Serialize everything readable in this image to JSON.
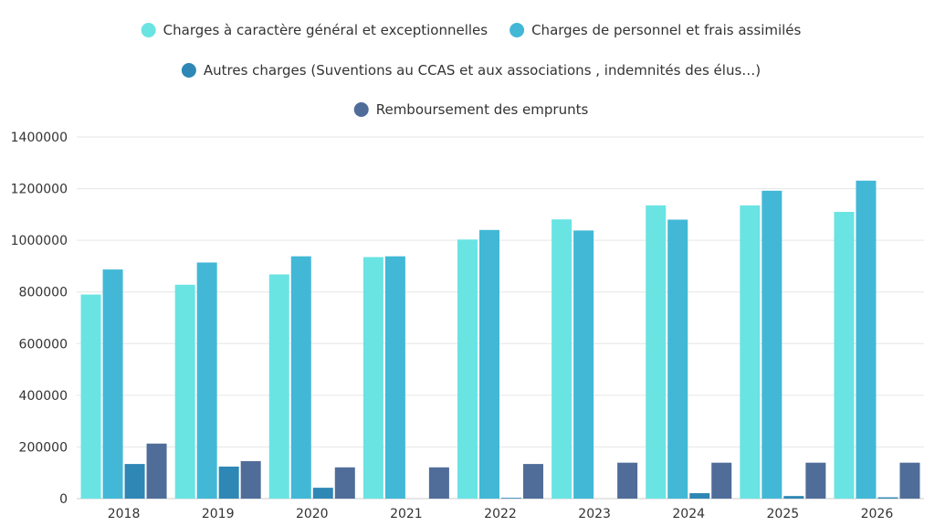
{
  "chart_data": {
    "type": "bar",
    "title": "",
    "xlabel": "",
    "ylabel": "",
    "ylim": [
      0,
      1400000
    ],
    "yticks": [
      0,
      200000,
      400000,
      600000,
      800000,
      1000000,
      1200000,
      1400000
    ],
    "ytick_labels": [
      "0",
      "200000",
      "400000",
      "600000",
      "800000",
      "1000000",
      "1200000",
      "1400000"
    ],
    "grid": true,
    "legend_position": "top",
    "categories": [
      "2018",
      "2019",
      "2020",
      "2021",
      "2022",
      "2023",
      "2024",
      "2025",
      "2026"
    ],
    "series": [
      {
        "name": "Charges à caractère général et exceptionnelles",
        "color": "#6ae3e3",
        "values": [
          790000,
          828000,
          868000,
          935000,
          1003000,
          1081000,
          1135000,
          1135000,
          1110000
        ]
      },
      {
        "name": "Charges de personnel et frais assimilés",
        "color": "#42b8d6",
        "values": [
          887000,
          914000,
          938000,
          938000,
          1040000,
          1038000,
          1080000,
          1192000,
          1231000
        ]
      },
      {
        "name": "Autres charges (Suventions au CCAS et aux associations , indemnités des élus…)",
        "color": "#2e87b5",
        "values": [
          134000,
          124000,
          42000,
          0,
          3000,
          0,
          21000,
          10000,
          5000
        ]
      },
      {
        "name": "Remboursement des emprunts",
        "color": "#4f6d98",
        "values": [
          213000,
          145000,
          121000,
          121000,
          134000,
          139000,
          139000,
          139000,
          139000
        ]
      }
    ]
  }
}
